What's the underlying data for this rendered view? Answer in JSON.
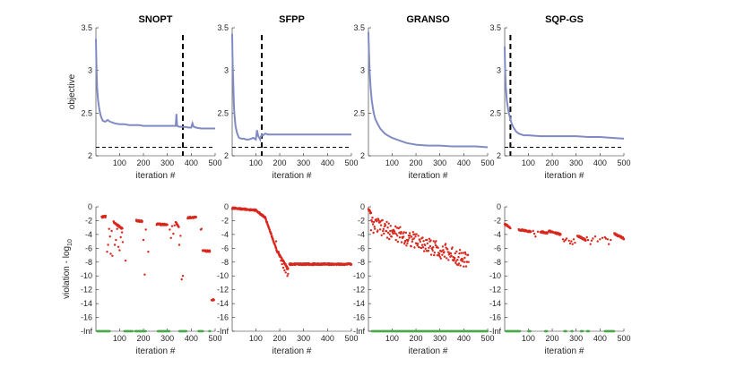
{
  "colors": {
    "objective": "#7f8bc2",
    "violation": "#d9281e",
    "feasible": "#4aa84a",
    "axis": "#262626",
    "reference": "#000000"
  },
  "shared": {
    "xlabel": "iteration #",
    "top_ylabel": "objective",
    "bottom_ylabel_main": "violation - log",
    "bottom_ylabel_sub": "10"
  },
  "chart_data": [
    {
      "type": "line",
      "row": "top",
      "panel": 0,
      "title": "SNOPT",
      "xlabel": "iteration #",
      "ylabel": "objective",
      "xlim": [
        1,
        500
      ],
      "ylim": [
        2,
        3.5
      ],
      "xticks": [
        100,
        200,
        300,
        400,
        500
      ],
      "xtick_labels": [
        "100",
        "200",
        "300",
        "400",
        "500"
      ],
      "yticks": [
        2,
        2.5,
        3,
        3.5
      ],
      "ytick_labels": [
        "2",
        "2.5",
        "3",
        "3.5"
      ],
      "series": [
        {
          "x": [
            1,
            3,
            6,
            10,
            15,
            20,
            25,
            30,
            40,
            50,
            60,
            70,
            80,
            100,
            120,
            140,
            160,
            180,
            200,
            220,
            240,
            260,
            280,
            300,
            320,
            335,
            338,
            341,
            350,
            370,
            390,
            400,
            405,
            410,
            420,
            440,
            460,
            480,
            500
          ],
          "y": [
            3.37,
            3.1,
            2.8,
            2.65,
            2.55,
            2.48,
            2.44,
            2.41,
            2.4,
            2.42,
            2.4,
            2.39,
            2.38,
            2.37,
            2.37,
            2.36,
            2.36,
            2.36,
            2.35,
            2.35,
            2.35,
            2.35,
            2.35,
            2.35,
            2.35,
            2.35,
            2.49,
            2.35,
            2.34,
            2.34,
            2.33,
            2.33,
            2.38,
            2.34,
            2.33,
            2.32,
            2.32,
            2.32,
            2.32
          ]
        }
      ],
      "hline": 2.1,
      "vline": 365
    },
    {
      "type": "line",
      "row": "top",
      "panel": 1,
      "title": "SFPP",
      "xlabel": "iteration #",
      "ylabel": "",
      "xlim": [
        1,
        500
      ],
      "ylim": [
        2,
        3.5
      ],
      "xticks": [
        100,
        200,
        300,
        400,
        500
      ],
      "xtick_labels": [
        "100",
        "200",
        "300",
        "400",
        "500"
      ],
      "yticks": [
        2,
        2.5,
        3,
        3.5
      ],
      "ytick_labels": [
        "2",
        "2.5",
        "3",
        "3.5"
      ],
      "series": [
        {
          "x": [
            1,
            3,
            5,
            8,
            10,
            15,
            20,
            25,
            30,
            40,
            50,
            60,
            70,
            80,
            90,
            100,
            105,
            110,
            115,
            118,
            121,
            125,
            130,
            140,
            150,
            170,
            200,
            250,
            300,
            350,
            400,
            450,
            500
          ],
          "y": [
            3.43,
            3.1,
            2.9,
            2.6,
            2.5,
            2.35,
            2.28,
            2.24,
            2.21,
            2.2,
            2.2,
            2.19,
            2.19,
            2.2,
            2.21,
            2.19,
            2.3,
            2.23,
            2.21,
            2.19,
            2.22,
            2.25,
            2.24,
            2.26,
            2.25,
            2.25,
            2.25,
            2.25,
            2.25,
            2.25,
            2.25,
            2.25,
            2.25
          ]
        }
      ],
      "hline": 2.1,
      "vline": 125
    },
    {
      "type": "line",
      "row": "top",
      "panel": 2,
      "title": "GRANSO",
      "xlabel": "iteration #",
      "ylabel": "",
      "xlim": [
        1,
        500
      ],
      "ylim": [
        2,
        3.5
      ],
      "xticks": [
        100,
        200,
        300,
        400,
        500
      ],
      "xtick_labels": [
        "100",
        "200",
        "300",
        "400",
        "500"
      ],
      "yticks": [
        2,
        2.5,
        3,
        3.5
      ],
      "ytick_labels": [
        "2",
        "2.5",
        "3",
        "3.5"
      ],
      "series": [
        {
          "x": [
            1,
            3,
            6,
            10,
            15,
            20,
            25,
            30,
            40,
            50,
            60,
            70,
            80,
            100,
            120,
            140,
            160,
            180,
            200,
            250,
            300,
            350,
            400,
            450,
            500
          ],
          "y": [
            3.45,
            3.25,
            3.0,
            2.8,
            2.65,
            2.55,
            2.48,
            2.43,
            2.37,
            2.32,
            2.29,
            2.26,
            2.24,
            2.21,
            2.19,
            2.17,
            2.15,
            2.14,
            2.13,
            2.12,
            2.12,
            2.11,
            2.11,
            2.11,
            2.1
          ]
        }
      ],
      "hline": null,
      "vline": null
    },
    {
      "type": "line",
      "row": "top",
      "panel": 3,
      "title": "SQP-GS",
      "xlabel": "iteration #",
      "ylabel": "",
      "xlim": [
        1,
        500
      ],
      "ylim": [
        2,
        3.5
      ],
      "xticks": [
        100,
        200,
        300,
        400,
        500
      ],
      "xtick_labels": [
        "100",
        "200",
        "300",
        "400",
        "500"
      ],
      "yticks": [
        2,
        2.5,
        3,
        3.5
      ],
      "ytick_labels": [
        "2",
        "2.5",
        "3",
        "3.5"
      ],
      "series": [
        {
          "x": [
            1,
            3,
            6,
            10,
            15,
            20,
            25,
            30,
            40,
            50,
            60,
            70,
            80,
            100,
            150,
            200,
            250,
            300,
            350,
            400,
            450,
            500
          ],
          "y": [
            3.28,
            3.0,
            2.8,
            2.65,
            2.55,
            2.48,
            2.43,
            2.38,
            2.32,
            2.28,
            2.26,
            2.25,
            2.24,
            2.24,
            2.23,
            2.23,
            2.23,
            2.23,
            2.22,
            2.22,
            2.21,
            2.2
          ]
        }
      ],
      "hline": 2.1,
      "vline": 25
    },
    {
      "type": "scatter",
      "row": "bottom",
      "panel": 0,
      "title": "",
      "xlabel": "iteration #",
      "ylabel": "violation - log10",
      "xlim": [
        1,
        500
      ],
      "ylim": [
        -18,
        0
      ],
      "xticks": [
        100,
        200,
        300,
        400,
        500
      ],
      "xtick_labels": [
        "100",
        "200",
        "300",
        "400",
        "500"
      ],
      "yticks": [
        0,
        -2,
        -4,
        -6,
        -8,
        -10,
        -12,
        -14,
        -16,
        -18
      ],
      "ytick_labels": [
        "0",
        "-2",
        "-4",
        "-6",
        "-8",
        "-10",
        "-12",
        "-14",
        "-16",
        "-Inf"
      ],
      "feasible_value": -18,
      "violation_segments": [
        {
          "x0": 25,
          "x1": 42,
          "y0": -1.5,
          "y1": -1.4
        },
        {
          "x0": 75,
          "x1": 112,
          "y0": -2.2,
          "y1": -3.2
        },
        {
          "x0": 170,
          "x1": 195,
          "y0": -2.0,
          "y1": -2.1
        },
        {
          "x0": 255,
          "x1": 300,
          "y0": -2.5,
          "y1": -2.6
        },
        {
          "x0": 335,
          "x1": 348,
          "y0": -2.2,
          "y1": -3.0
        },
        {
          "x0": 385,
          "x1": 420,
          "y0": -1.6,
          "y1": -1.5
        },
        {
          "x0": 448,
          "x1": 478,
          "y0": -6.4,
          "y1": -6.4
        },
        {
          "x0": 485,
          "x1": 495,
          "y0": -13.5,
          "y1": -13.4
        }
      ],
      "violation_scatter": {
        "x": [
          48,
          52,
          56,
          60,
          63,
          67,
          70,
          80,
          85,
          90,
          95,
          100,
          105,
          110,
          113,
          125,
          200,
          205,
          210,
          220,
          310,
          315,
          320,
          325,
          330,
          350,
          355,
          360,
          365,
          440,
          443
        ],
        "y": [
          -6.5,
          -5.5,
          -3.2,
          -4.3,
          -6.8,
          -3.5,
          -7.1,
          -5.5,
          -4.8,
          -3.2,
          -5.8,
          -6.3,
          -4.4,
          -3.7,
          -5.1,
          -7.8,
          -4.8,
          -9.8,
          -3.3,
          -6.5,
          -3.3,
          -4.5,
          -2.8,
          -3.9,
          -2.7,
          -5.5,
          -4.2,
          -10.5,
          -10.0,
          -3.3,
          -3.2
        ]
      },
      "feasible_segments": [
        {
          "x0": 5,
          "x1": 60
        },
        {
          "x0": 120,
          "x1": 155
        },
        {
          "x0": 165,
          "x1": 210
        },
        {
          "x0": 260,
          "x1": 310
        },
        {
          "x0": 350,
          "x1": 380
        },
        {
          "x0": 430,
          "x1": 450
        },
        {
          "x0": 475,
          "x1": 480
        }
      ]
    },
    {
      "type": "scatter",
      "row": "bottom",
      "panel": 1,
      "title": "",
      "xlabel": "iteration #",
      "ylabel": "",
      "xlim": [
        1,
        500
      ],
      "ylim": [
        -18,
        0
      ],
      "xticks": [
        100,
        200,
        300,
        400,
        500
      ],
      "xtick_labels": [
        "100",
        "200",
        "300",
        "400",
        "500"
      ],
      "yticks": [
        0,
        -2,
        -4,
        -6,
        -8,
        -10,
        -12,
        -14,
        -16,
        -18
      ],
      "ytick_labels": [
        "0",
        "-2",
        "-4",
        "-6",
        "-8",
        "-10",
        "-12",
        "-14",
        "-16",
        "-Inf"
      ],
      "feasible_value": -18,
      "violation_segments": [
        {
          "x0": 1,
          "x1": 40,
          "y0": -0.2,
          "y1": -0.3
        },
        {
          "x0": 40,
          "x1": 100,
          "y0": -0.3,
          "y1": -0.5
        },
        {
          "x0": 100,
          "x1": 140,
          "y0": -0.5,
          "y1": -1.6
        },
        {
          "x0": 140,
          "x1": 190,
          "y0": -1.6,
          "y1": -6.5
        },
        {
          "x0": 190,
          "x1": 235,
          "y0": -6.5,
          "y1": -9.0
        },
        {
          "x0": 240,
          "x1": 500,
          "y0": -8.3,
          "y1": -8.3
        }
      ],
      "violation_scatter": {
        "x": [
          185,
          195,
          200,
          205,
          210,
          215,
          220,
          225,
          230,
          232,
          235
        ],
        "y": [
          -5.0,
          -6.5,
          -7.2,
          -7.8,
          -8.3,
          -8.8,
          -9.2,
          -9.5,
          -9.0,
          -10.0,
          -9.7
        ]
      },
      "feasible_segments": []
    },
    {
      "type": "scatter",
      "row": "bottom",
      "panel": 2,
      "title": "",
      "xlabel": "iteration #",
      "ylabel": "",
      "xlim": [
        1,
        500
      ],
      "ylim": [
        -18,
        0
      ],
      "xticks": [
        100,
        200,
        300,
        400,
        500
      ],
      "xtick_labels": [
        "100",
        "200",
        "300",
        "400",
        "500"
      ],
      "yticks": [
        0,
        -2,
        -4,
        -6,
        -8,
        -10,
        -12,
        -14,
        -16,
        -18
      ],
      "ytick_labels": [
        "0",
        "-2",
        "-4",
        "-6",
        "-8",
        "-10",
        "-12",
        "-14",
        "-16",
        "-Inf"
      ],
      "feasible_value": -18,
      "violation_segments": [
        {
          "x0": 1,
          "x1": 12,
          "y0": -0.3,
          "y1": -1.0
        }
      ],
      "violation_band": {
        "x0": 12,
        "x1": 420,
        "y_start": -2.5,
        "y_end": -7.8,
        "spread": 1.2,
        "step": 2
      },
      "feasible_segments": [
        {
          "x0": 15,
          "x1": 500
        }
      ]
    },
    {
      "type": "scatter",
      "row": "bottom",
      "panel": 3,
      "title": "",
      "xlabel": "iteration #",
      "ylabel": "",
      "xlim": [
        1,
        500
      ],
      "ylim": [
        -18,
        0
      ],
      "xticks": [
        100,
        200,
        300,
        400,
        500
      ],
      "xtick_labels": [
        "100",
        "200",
        "300",
        "400",
        "500"
      ],
      "yticks": [
        0,
        -2,
        -4,
        -6,
        -8,
        -10,
        -12,
        -14,
        -16,
        -18
      ],
      "ytick_labels": [
        "0",
        "-2",
        "-4",
        "-6",
        "-8",
        "-10",
        "-12",
        "-14",
        "-16",
        "-Inf"
      ],
      "feasible_value": -18,
      "violation_segments": [
        {
          "x0": 1,
          "x1": 25,
          "y0": -2.5,
          "y1": -3.0
        },
        {
          "x0": 60,
          "x1": 110,
          "y0": -3.3,
          "y1": -3.6
        },
        {
          "x0": 150,
          "x1": 180,
          "y0": -3.6,
          "y1": -3.8
        },
        {
          "x0": 185,
          "x1": 235,
          "y0": -3.5,
          "y1": -4.0
        },
        {
          "x0": 305,
          "x1": 340,
          "y0": -4.2,
          "y1": -4.8
        },
        {
          "x0": 460,
          "x1": 500,
          "y0": -3.9,
          "y1": -4.6
        }
      ],
      "violation_scatter": {
        "x": [
          120,
          125,
          130,
          140,
          245,
          250,
          255,
          260,
          270,
          275,
          280,
          285,
          290,
          295,
          345,
          350,
          360,
          365,
          370,
          380,
          390,
          400,
          410,
          420,
          425,
          432,
          437,
          445
        ],
        "y": [
          -3.5,
          -3.9,
          -4.3,
          -3.6,
          -4.7,
          -5.0,
          -4.8,
          -4.6,
          -4.9,
          -5.3,
          -5.0,
          -5.4,
          -4.7,
          -5.2,
          -4.4,
          -4.8,
          -5.4,
          -4.9,
          -4.6,
          -4.3,
          -5.0,
          -4.7,
          -4.5,
          -4.4,
          -4.6,
          -4.7,
          -5.4,
          -4.8
        ]
      },
      "feasible_segments": [
        {
          "x0": 5,
          "x1": 65
        },
        {
          "x0": 100,
          "x1": 110
        },
        {
          "x0": 170,
          "x1": 180
        },
        {
          "x0": 250,
          "x1": 260
        },
        {
          "x0": 280,
          "x1": 285
        },
        {
          "x0": 320,
          "x1": 330
        },
        {
          "x0": 345,
          "x1": 355
        },
        {
          "x0": 420,
          "x1": 460
        }
      ]
    }
  ]
}
